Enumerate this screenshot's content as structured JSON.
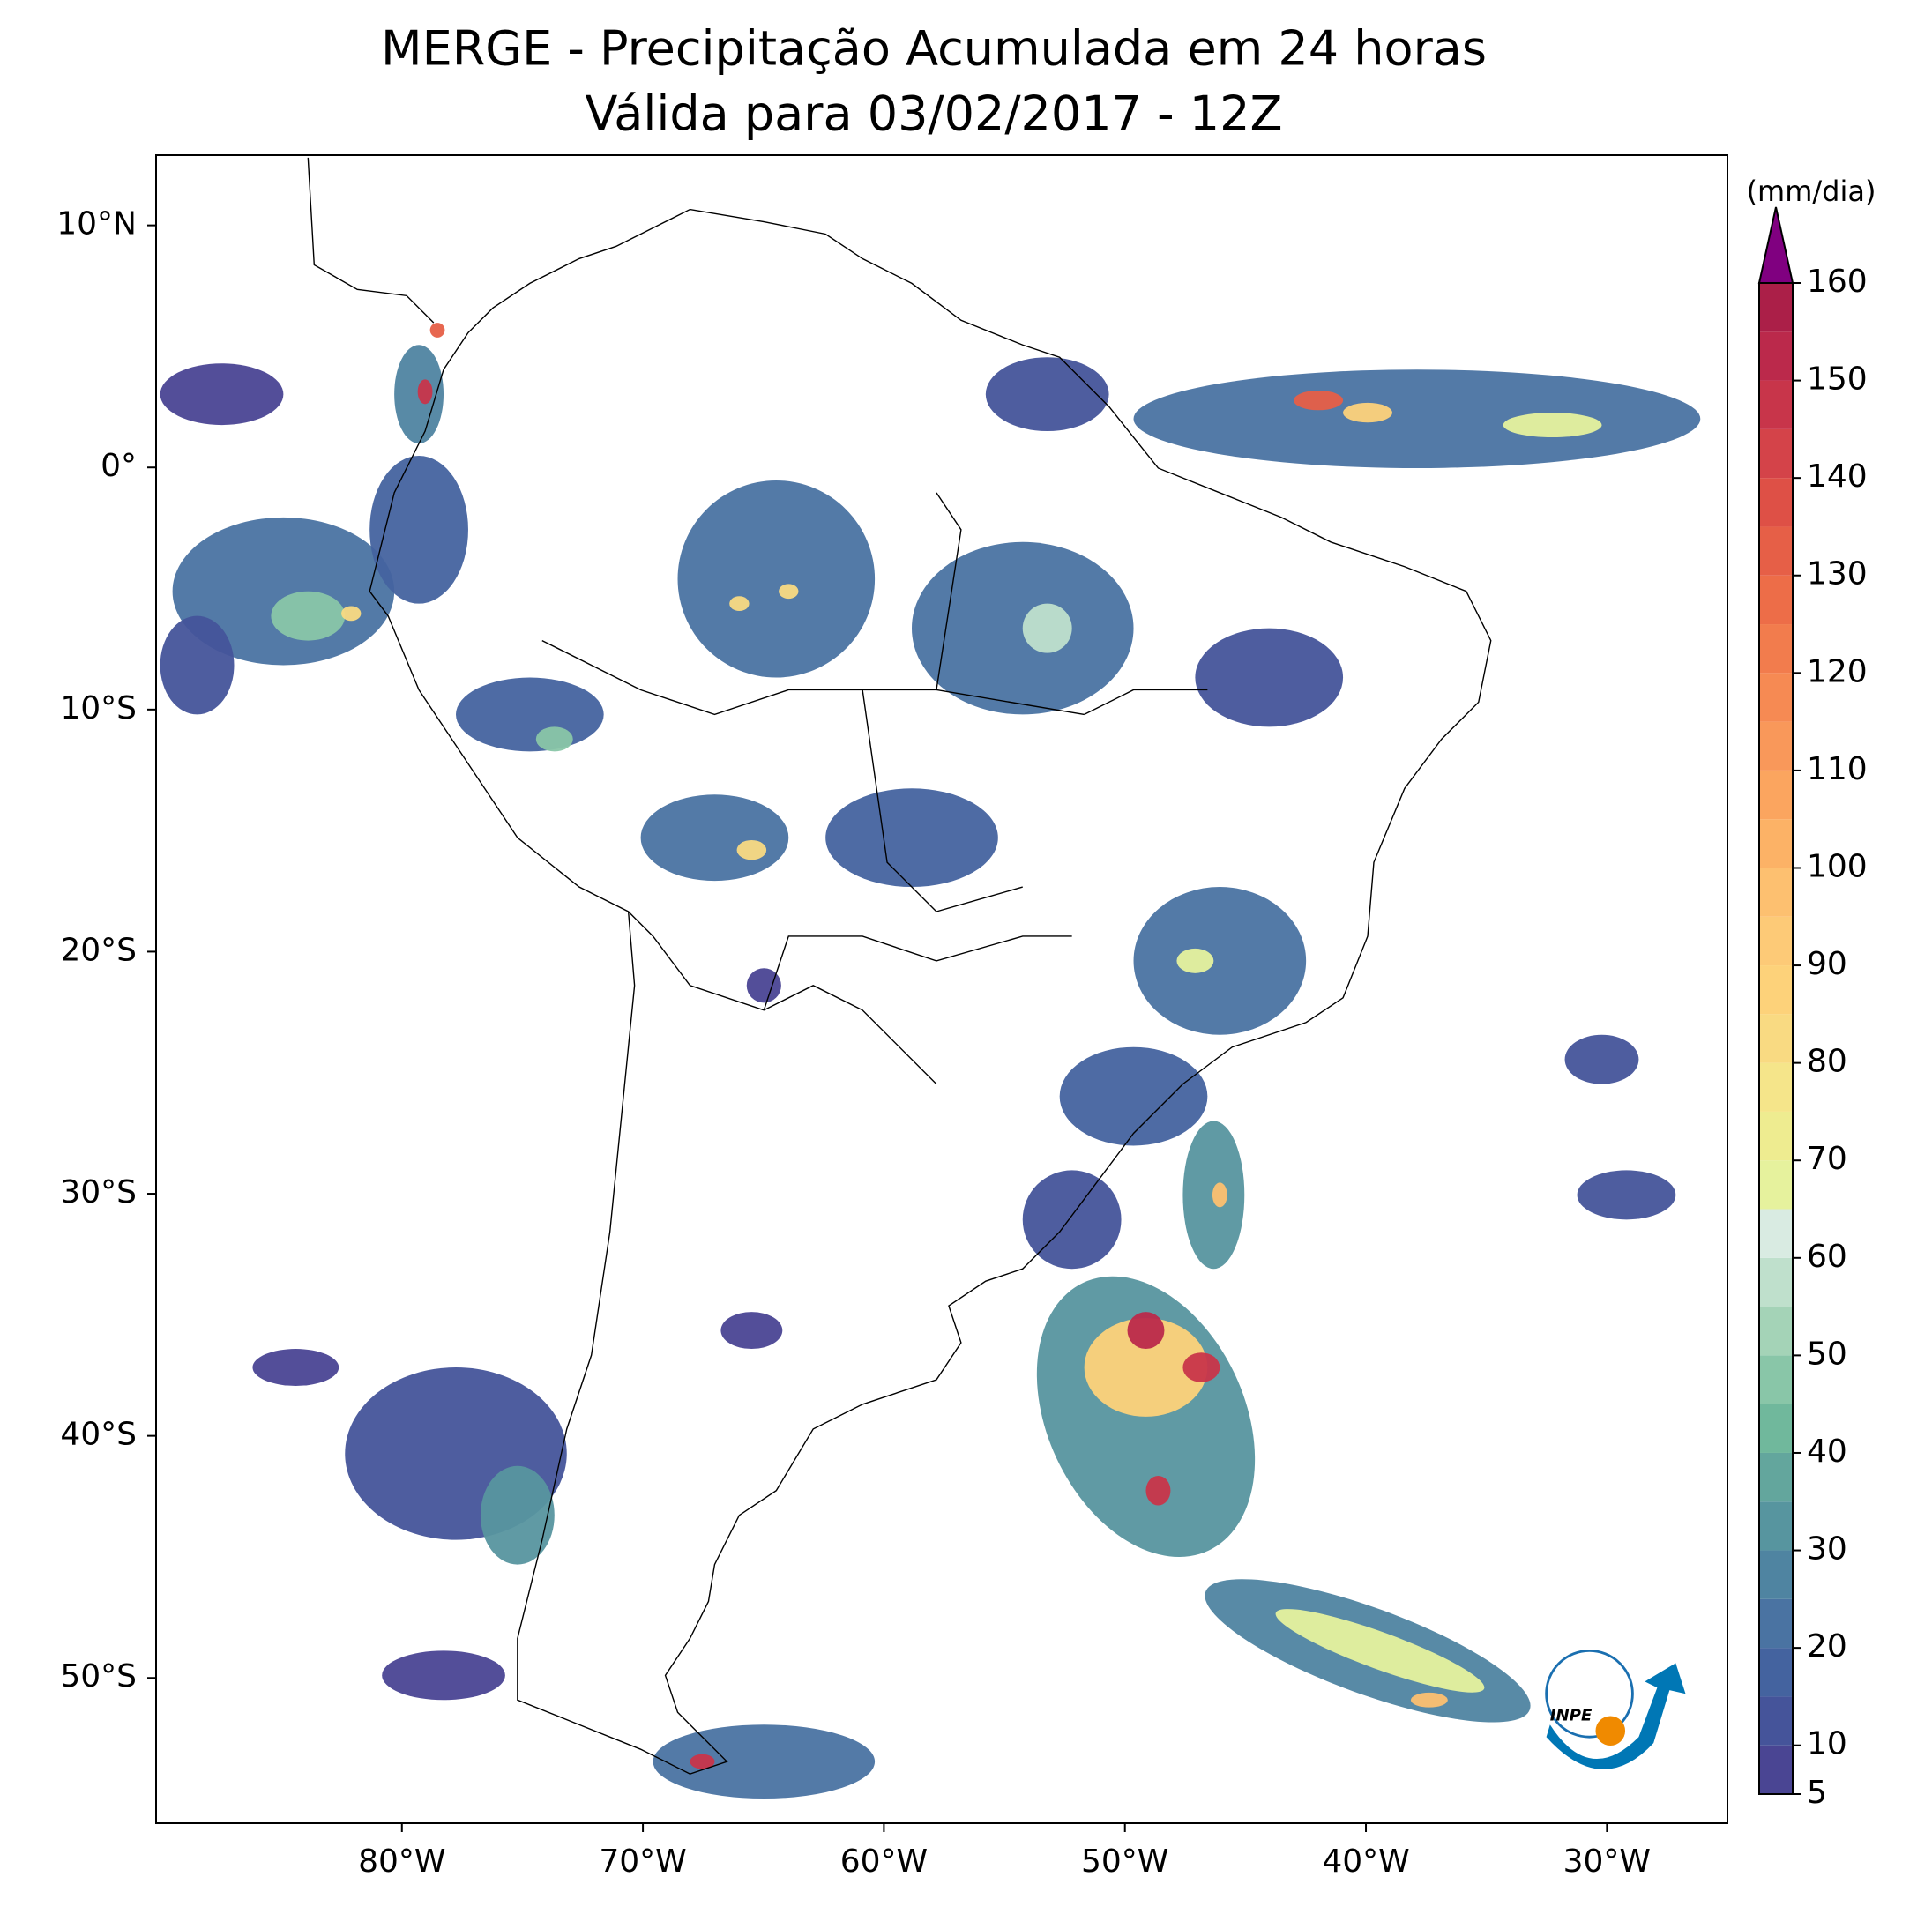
{
  "map": {
    "title": "MERGE - Precipitação Acumulada em 24 horas",
    "subtitle": "Válida para 03/02/2017 - 12Z",
    "xlim": [
      -90.2,
      -25
    ],
    "ylim": [
      -56,
      12.9
    ],
    "xticks": [
      {
        "value": -80,
        "label": "80°W"
      },
      {
        "value": -70,
        "label": "70°W"
      },
      {
        "value": -60,
        "label": "60°W"
      },
      {
        "value": -50,
        "label": "50°W"
      },
      {
        "value": -40,
        "label": "40°W"
      },
      {
        "value": -30,
        "label": "30°W"
      }
    ],
    "yticks": [
      {
        "value": 10,
        "label": "10°N"
      },
      {
        "value": 0,
        "label": "0°"
      },
      {
        "value": -10,
        "label": "10°S"
      },
      {
        "value": -20,
        "label": "20°S"
      },
      {
        "value": -30,
        "label": "30°S"
      },
      {
        "value": -40,
        "label": "40°S"
      },
      {
        "value": -50,
        "label": "50°S"
      }
    ],
    "colorbar": {
      "label": "(mm/dia)",
      "extend_color": "#800080",
      "levels": [
        5,
        10,
        15,
        20,
        25,
        30,
        35,
        40,
        45,
        50,
        55,
        60,
        65,
        70,
        75,
        80,
        85,
        90,
        95,
        100,
        105,
        110,
        115,
        120,
        125,
        130,
        135,
        140,
        145,
        150,
        155,
        160
      ],
      "colors": [
        "#4a4593",
        "#45549a",
        "#44639f",
        "#4a73a2",
        "#4f84a1",
        "#57959f",
        "#63a69d",
        "#70b89c",
        "#89c6a8",
        "#a4d3b7",
        "#bfe0cc",
        "#d9ebe2",
        "#e6f29d",
        "#eeec90",
        "#f5e58a",
        "#f9da82",
        "#fdd27a",
        "#fdca77",
        "#fdc070",
        "#fcb266",
        "#fba55f",
        "#f9985a",
        "#f68a53",
        "#f27c4d",
        "#ed6d48",
        "#e65f47",
        "#de5046",
        "#d44349",
        "#c8354a",
        "#bb294b",
        "#ab1f48"
      ],
      "ticks": [
        5,
        10,
        20,
        30,
        40,
        50,
        60,
        70,
        80,
        90,
        100,
        110,
        120,
        130,
        140,
        150,
        160
      ]
    },
    "logo": "INPE"
  }
}
